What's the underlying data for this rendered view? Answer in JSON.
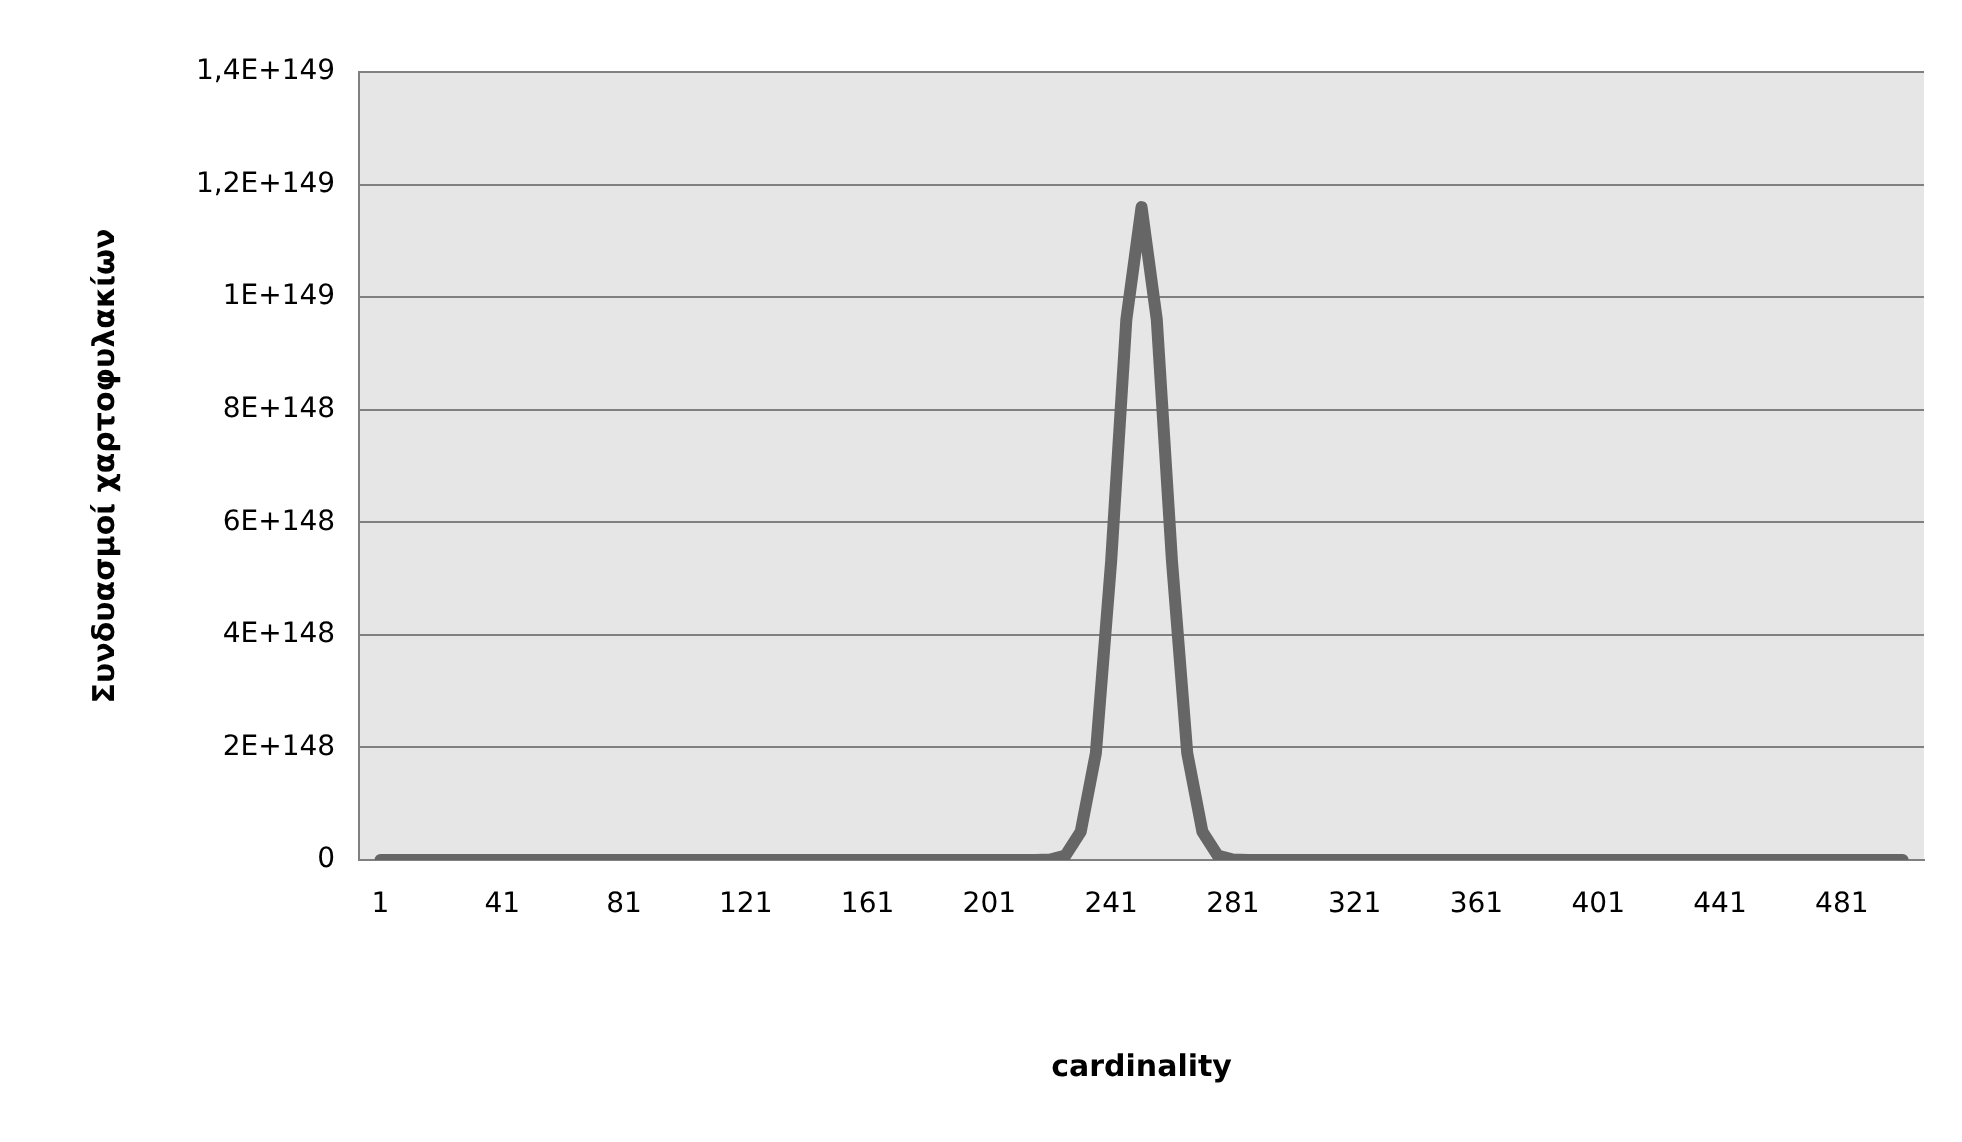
{
  "chart_data": {
    "type": "line",
    "xlabel": "cardinality",
    "ylabel": "Συνδυασμοί χαρτοφυλακίων",
    "x": [
      1,
      201,
      211,
      216,
      221,
      226,
      231,
      236,
      241,
      246,
      251,
      256,
      261,
      266,
      271,
      276,
      281,
      286,
      291,
      301,
      501
    ],
    "series": [
      {
        "color": "#666666",
        "values": [
          0,
          0,
          0,
          0,
          1e+146,
          8e+146,
          5e+147,
          1.9e+148,
          5.3e+148,
          9.6e+148,
          1.16e+149,
          9.6e+148,
          5.3e+148,
          1.9e+148,
          5e+147,
          8e+146,
          1e+146,
          0,
          0,
          0,
          0
        ]
      }
    ],
    "xlim": [
      -6,
      508
    ],
    "xticks": [
      1,
      41,
      81,
      121,
      161,
      201,
      241,
      281,
      321,
      361,
      401,
      441,
      481
    ],
    "ylim": [
      0,
      1.4e+149
    ],
    "yticks": [
      0,
      {
        "value": 2e+148,
        "label": "2E+148"
      },
      {
        "value": 4e+148,
        "label": "4E+148"
      },
      {
        "value": 6e+148,
        "label": "6E+148"
      },
      {
        "value": 8e+148,
        "label": "8E+148"
      },
      {
        "value": 1e+149,
        "label": "1E+149"
      },
      {
        "value": 1.2e+149,
        "label": "1,2E+149"
      },
      {
        "value": 1.4e+149,
        "label": "1,4E+149"
      }
    ],
    "grid": "y",
    "legend": false,
    "marker": "none",
    "line_style": "solid"
  }
}
